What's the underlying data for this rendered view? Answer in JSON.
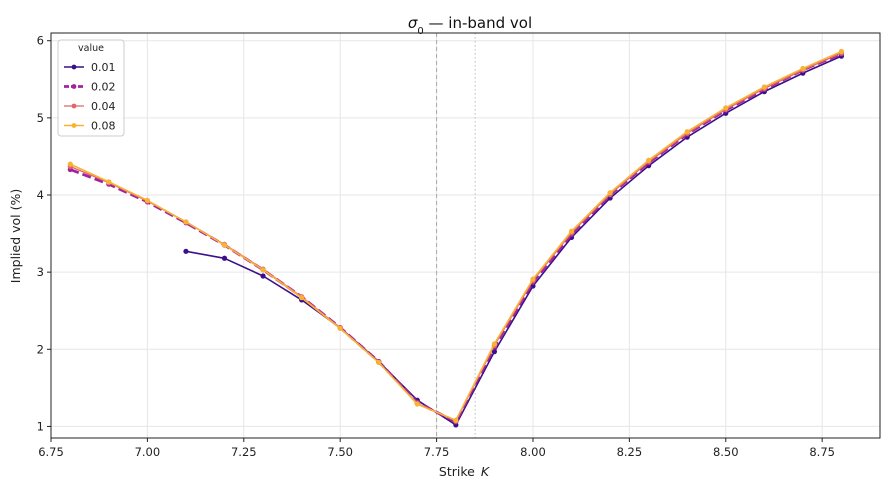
{
  "chart_data": {
    "type": "line",
    "title": "σ0 — in-band vol",
    "title_main": "σ",
    "title_sub": "0",
    "title_rest": " — in-band vol",
    "xlabel": "Strike",
    "xlabel_var": "K",
    "ylabel": "Implied vol (%)",
    "xlim": [
      6.75,
      8.9
    ],
    "ylim": [
      0.85,
      6.1
    ],
    "xticks": [
      "6.75",
      "7.00",
      "7.25",
      "7.50",
      "7.75",
      "8.00",
      "8.25",
      "8.50",
      "8.75"
    ],
    "yticks": [
      "1",
      "2",
      "3",
      "4",
      "5",
      "6"
    ],
    "grid": true,
    "legend_title": "value",
    "legend_position": "top-left",
    "vlines": [
      {
        "x": 7.75,
        "style": "dashed",
        "color": "#aaaaaa"
      },
      {
        "x": 7.85,
        "style": "dotted",
        "color": "#bbbbbb"
      }
    ],
    "series": [
      {
        "name": "0.01",
        "color": "#3b0f8c",
        "dash": "solid",
        "width": 1.6,
        "x": [
          7.1,
          7.2,
          7.3,
          7.4,
          7.5,
          7.6,
          7.7,
          7.8,
          7.9,
          8.0,
          8.1,
          8.2,
          8.3,
          8.4,
          8.5,
          8.6,
          8.7,
          8.8
        ],
        "y": [
          3.27,
          3.18,
          2.95,
          2.64,
          2.28,
          1.84,
          1.34,
          1.02,
          1.97,
          2.82,
          3.45,
          3.96,
          4.38,
          4.75,
          5.06,
          5.34,
          5.58,
          5.8
        ]
      },
      {
        "name": "0.02",
        "color": "#a2239f",
        "dash": "dashed",
        "width": 2.8,
        "x": [
          6.8,
          6.9,
          7.0,
          7.1,
          7.2,
          7.3,
          7.4,
          7.5,
          7.6,
          7.7,
          7.8,
          7.9,
          8.0,
          8.1,
          8.2,
          8.3,
          8.4,
          8.5,
          8.6,
          8.7,
          8.8
        ],
        "y": [
          4.33,
          4.14,
          3.91,
          3.64,
          3.35,
          3.03,
          2.68,
          2.28,
          1.84,
          1.31,
          1.06,
          2.03,
          2.87,
          3.49,
          4.0,
          4.42,
          4.79,
          5.1,
          5.37,
          5.62,
          5.83
        ]
      },
      {
        "name": "0.04",
        "color": "#e06668",
        "dash": "solid",
        "width": 1.3,
        "x": [
          6.8,
          6.9,
          7.0,
          7.1,
          7.2,
          7.3,
          7.4,
          7.5,
          7.6,
          7.7,
          7.8,
          7.9,
          8.0,
          8.1,
          8.2,
          8.3,
          8.4,
          8.5,
          8.6,
          8.7,
          8.8
        ],
        "y": [
          4.37,
          4.16,
          3.92,
          3.65,
          3.36,
          3.04,
          2.68,
          2.28,
          1.83,
          1.3,
          1.07,
          2.05,
          2.89,
          3.51,
          4.01,
          4.43,
          4.8,
          5.11,
          5.38,
          5.62,
          5.84
        ]
      },
      {
        "name": "0.08",
        "color": "#f9b233",
        "dash": "solid",
        "width": 1.6,
        "x": [
          6.8,
          6.9,
          7.0,
          7.1,
          7.2,
          7.3,
          7.4,
          7.5,
          7.6,
          7.7,
          7.8,
          7.9,
          8.0,
          8.1,
          8.2,
          8.3,
          8.4,
          8.5,
          8.6,
          8.7,
          8.8
        ],
        "y": [
          4.4,
          4.17,
          3.93,
          3.65,
          3.35,
          3.03,
          2.67,
          2.27,
          1.83,
          1.29,
          1.08,
          2.07,
          2.91,
          3.53,
          4.03,
          4.45,
          4.82,
          5.13,
          5.4,
          5.64,
          5.86
        ]
      }
    ]
  }
}
